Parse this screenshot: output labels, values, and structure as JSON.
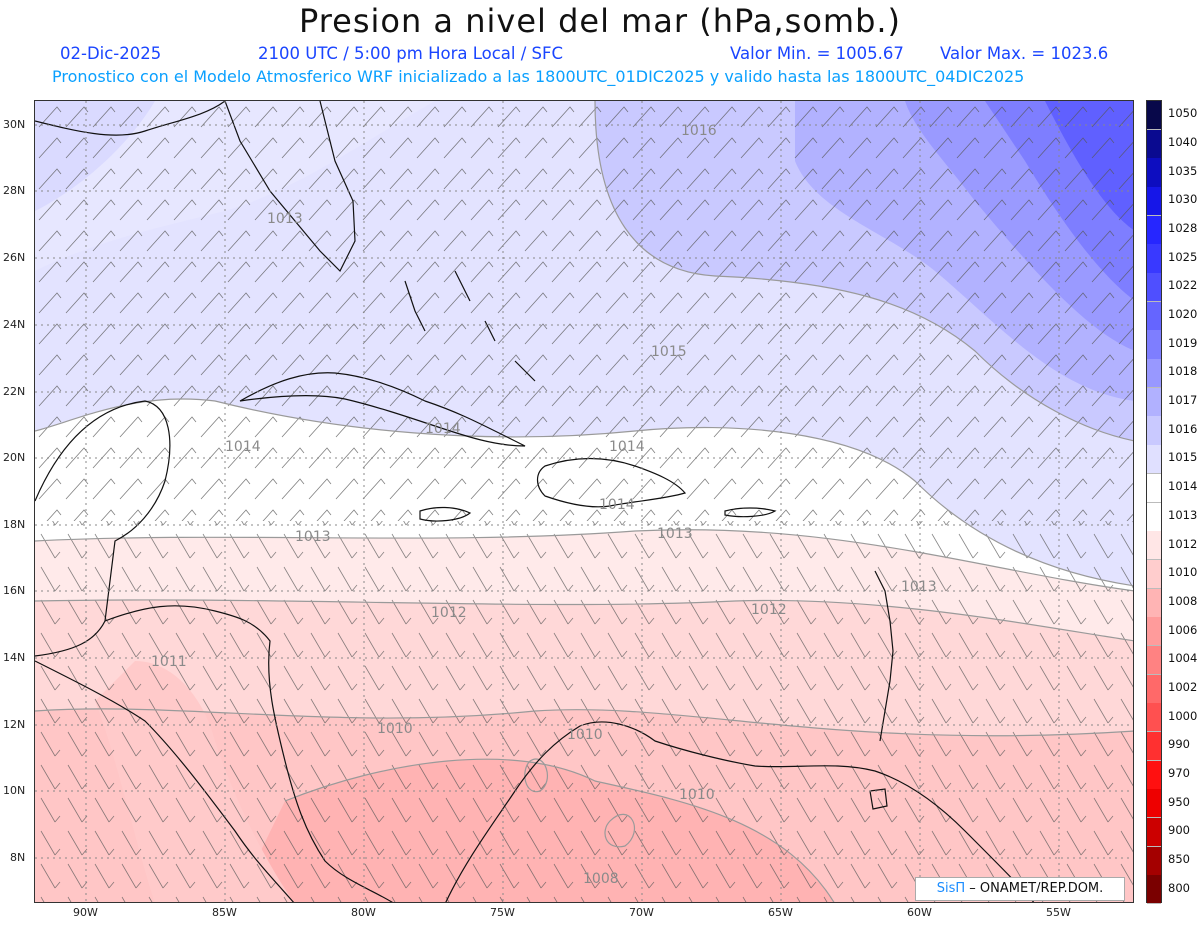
{
  "title": "Presion a nivel del mar (hPa,somb.)",
  "info": {
    "date": "02-Dic-2025",
    "time": "2100 UTC / 5:00 pm Hora Local / SFC",
    "min": "Valor Min. = 1005.67",
    "max": "Valor Max. = 1023.6",
    "model": "Pronostico con el Modelo Atmosferico WRF inicializado a las 1800UTC_01DIC2025 y valido hasta las  1800UTC_04DIC2025"
  },
  "lat_labels": [
    "30N",
    "28N",
    "26N",
    "24N",
    "22N",
    "20N",
    "18N",
    "16N",
    "14N",
    "12N",
    "10N",
    "8N"
  ],
  "lon_labels": [
    "90W",
    "85W",
    "80W",
    "75W",
    "70W",
    "65W",
    "60W",
    "55W"
  ],
  "colorbar": {
    "labels": [
      "1050",
      "1040",
      "1035",
      "1030",
      "1028",
      "1025",
      "1022",
      "1020",
      "1019",
      "1018",
      "1017",
      "1016",
      "1015",
      "1014",
      "1013",
      "1012",
      "1010",
      "1008",
      "1006",
      "1004",
      "1002",
      "1000",
      "990",
      "970",
      "950",
      "900",
      "850",
      "800"
    ],
    "colors": [
      "#08084a",
      "#0a0a90",
      "#0d0dc0",
      "#1616e8",
      "#2626ff",
      "#3939ff",
      "#4f4fff",
      "#6565ff",
      "#7e7eff",
      "#9898ff",
      "#b1b1ff",
      "#c9c9ff",
      "#e0e0ff",
      "#ffffff",
      "#ffffff",
      "#ffe6e6",
      "#ffcdcd",
      "#ffb4b4",
      "#ff9b9b",
      "#ff8282",
      "#ff6969",
      "#ff5050",
      "#ff3030",
      "#ff1010",
      "#ee0000",
      "#cc0000",
      "#a40000",
      "#7a0000"
    ]
  },
  "isobars": [
    "1016",
    "1013",
    "1015",
    "1014",
    "1014",
    "1014",
    "1014",
    "1013",
    "1013",
    "1013",
    "1012",
    "1012",
    "1011",
    "1010",
    "1010",
    "1010",
    "1008"
  ],
  "credit": {
    "brand": "SisΠ",
    "text": "– ONAMET/REP.DOM."
  }
}
